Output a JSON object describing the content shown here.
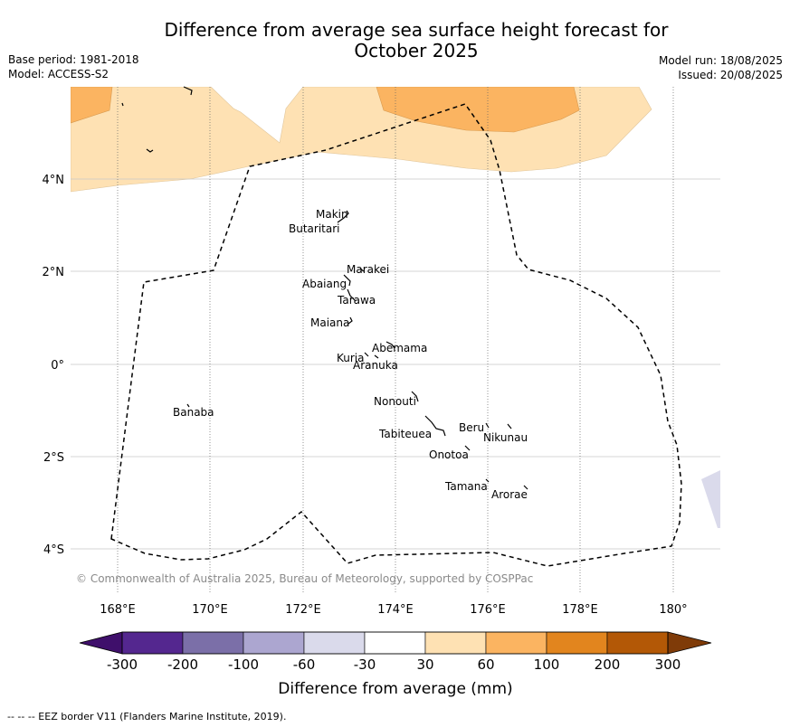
{
  "header": {
    "title_line1": "Difference from average sea surface height forecast for",
    "title_line2": "October 2025",
    "base_period": "Base period: 1981-2018",
    "model": "Model: ACCESS-S2",
    "model_run": "Model run: 18/08/2025",
    "issued": "Issued: 20/08/2025"
  },
  "map": {
    "lat_labels": [
      "4°N",
      "2°N",
      "0°",
      "2°S",
      "4°S"
    ],
    "lon_labels": [
      "168°E",
      "170°E",
      "172°E",
      "174°E",
      "176°E",
      "178°E",
      "180°"
    ],
    "copyright": "© Commonwealth of Australia 2025, Bureau of Meteorology, supported by COSPPac",
    "places": {
      "makin": "Makin",
      "butaritari": "Butaritari",
      "marakei": "Marakei",
      "abaiang": "Abaiang",
      "tarawa": "Tarawa",
      "maiana": "Maiana",
      "abemama": "Abemama",
      "kuria": "Kuria",
      "aranuka": "Aranuka",
      "banaba": "Banaba",
      "nonouti": "Nonouti",
      "tabiteuea": "Tabiteuea",
      "beru": "Beru",
      "nikunau": "Nikunau",
      "onotoa": "Onotoa",
      "tamana": "Tamana",
      "arorae": "Arorae"
    }
  },
  "colorbar": {
    "tick_labels": [
      "-300",
      "-200",
      "-100",
      "-60",
      "-30",
      "30",
      "60",
      "100",
      "200",
      "300"
    ],
    "colors": [
      "#3f0f6b",
      "#54278f",
      "#7b6fa8",
      "#aca6d0",
      "#dadaeb",
      "#ffffff",
      "#fee1b3",
      "#fbb461",
      "#e2851e",
      "#b35806",
      "#7f3b08"
    ],
    "label": "Difference from average (mm)"
  },
  "footer": {
    "eez_note": "--  --  -- EEZ border V11 (Flanders Marine Institute, 2019)."
  }
}
